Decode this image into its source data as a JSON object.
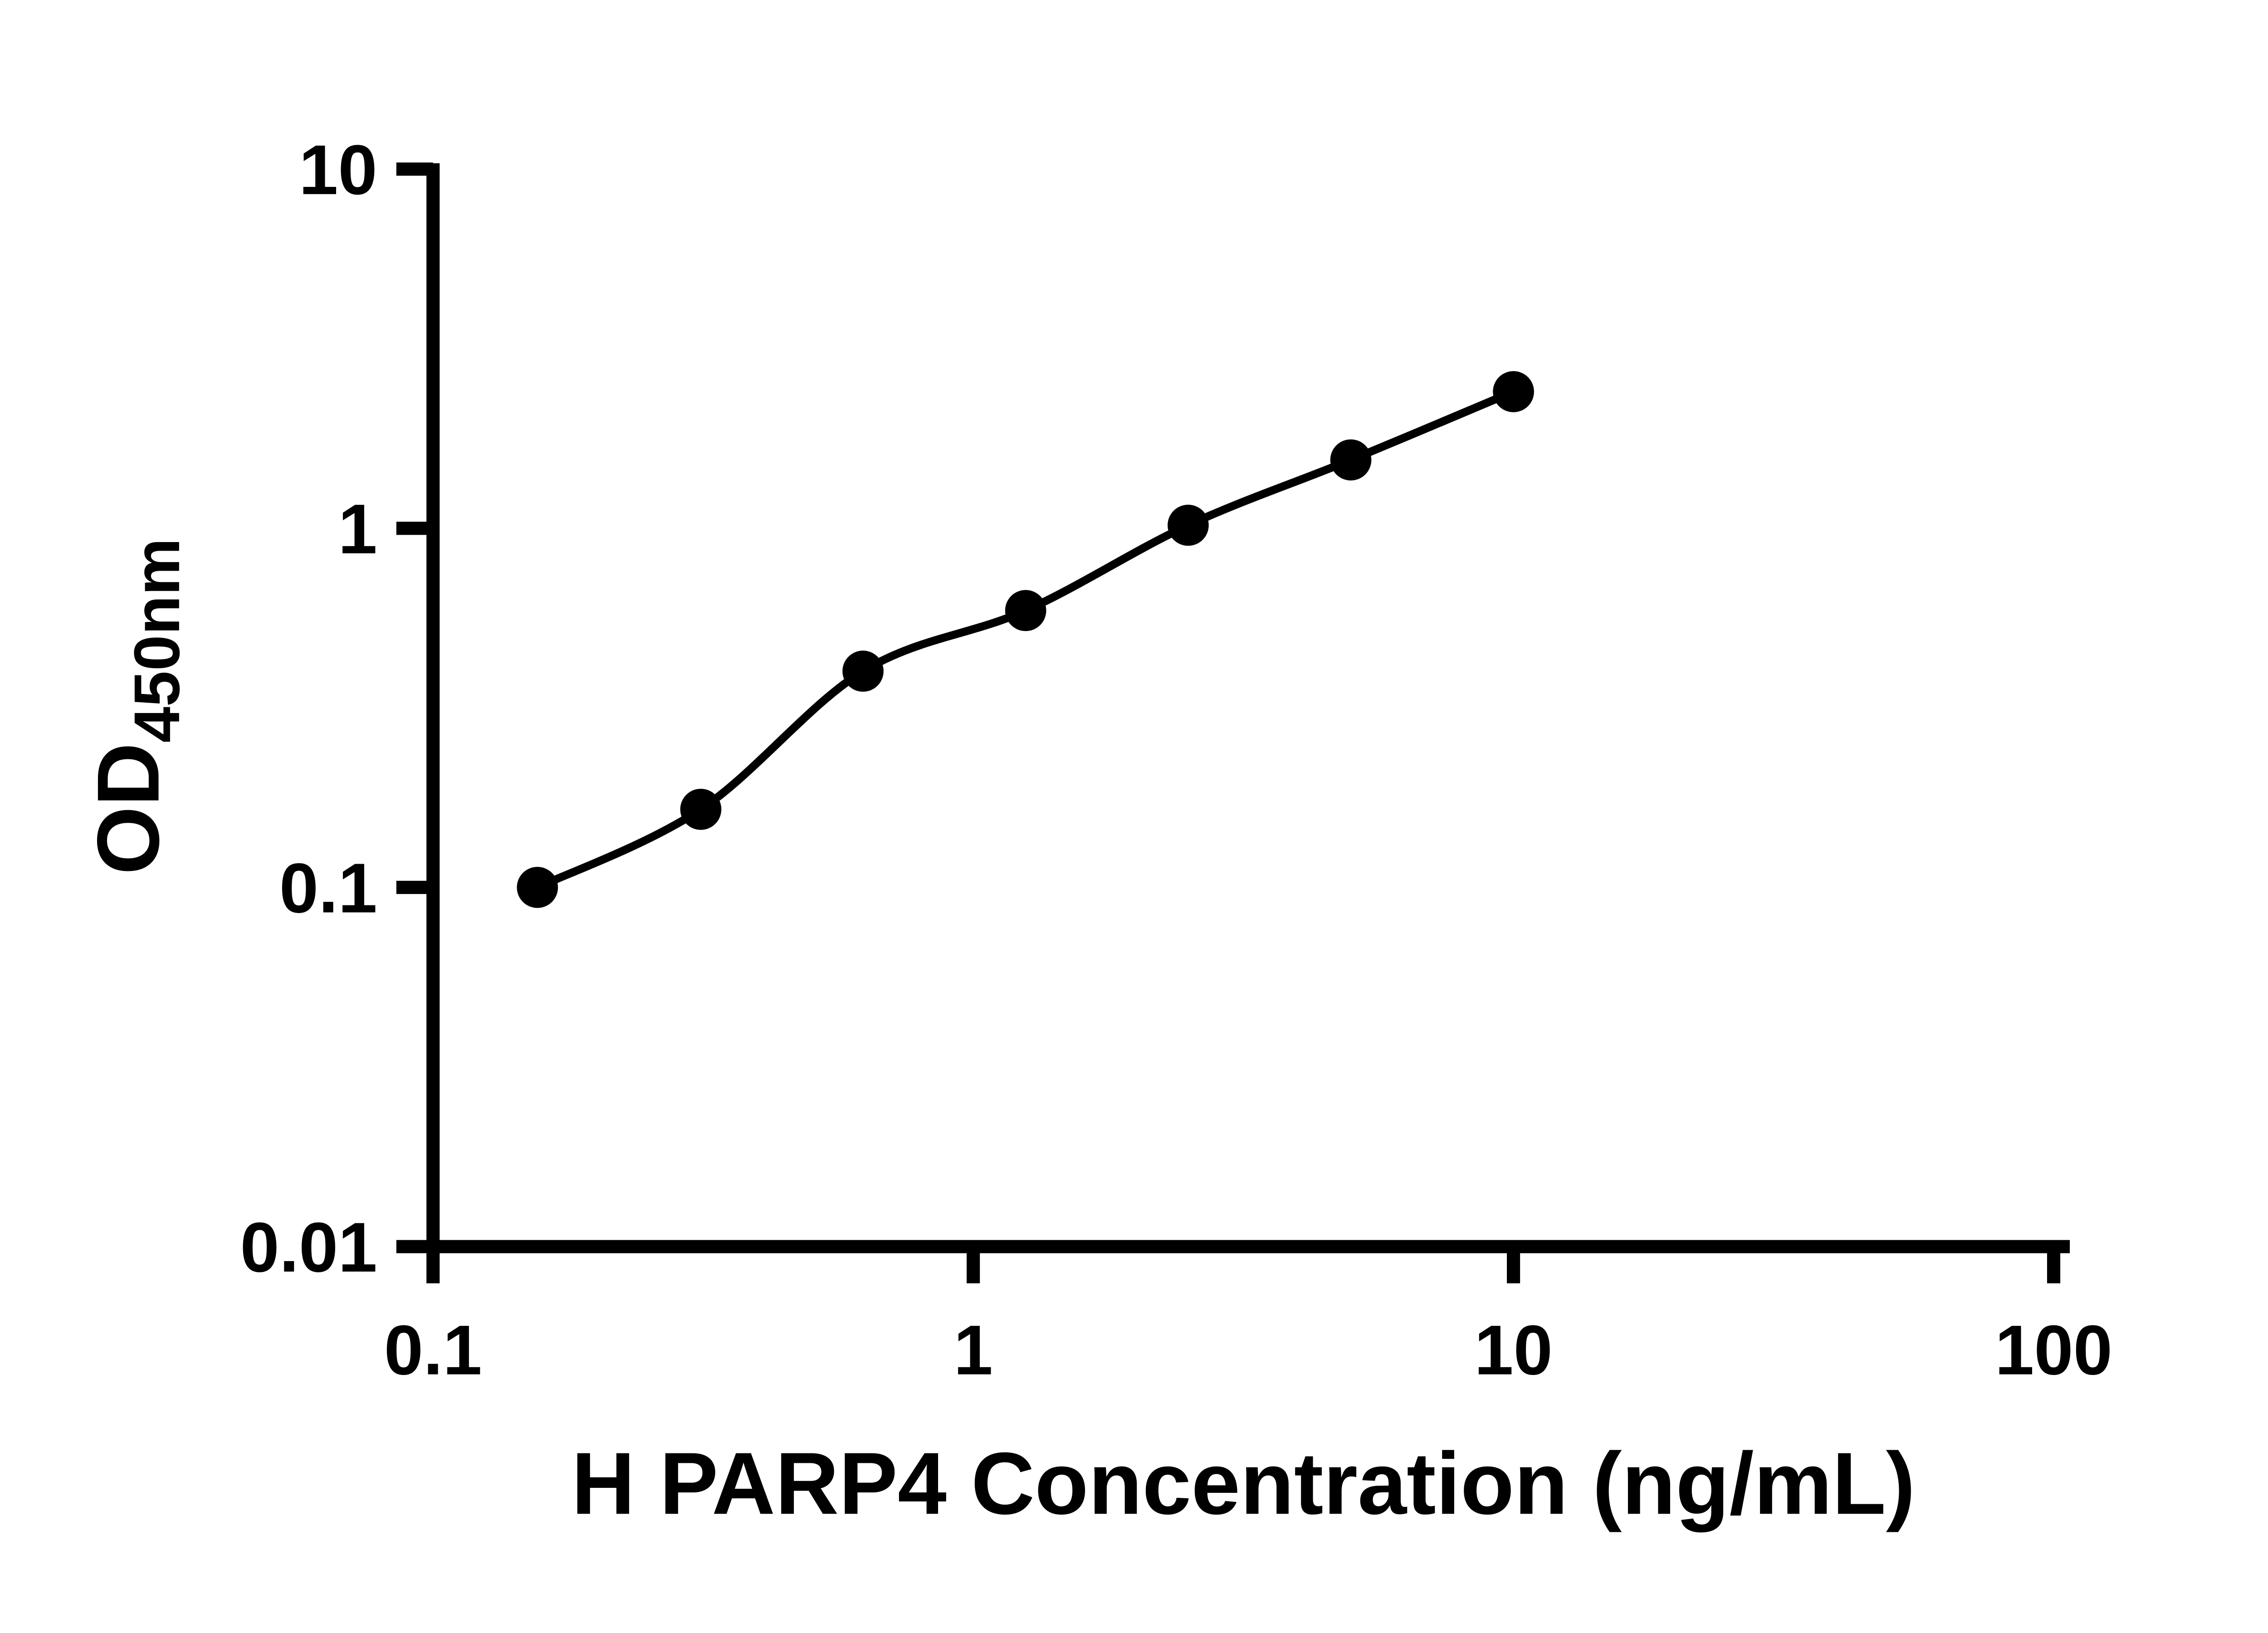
{
  "chart": {
    "background_color": "#ffffff",
    "axis_color": "#000000",
    "marker_color": "#000000",
    "curve_color": "#000000"
  },
  "chart_data": {
    "type": "scatter",
    "subtype": "log-log standard curve with smooth fitted line",
    "x": [
      0.156,
      0.313,
      0.625,
      1.25,
      2.5,
      5,
      10
    ],
    "y": [
      0.1,
      0.165,
      0.4,
      0.59,
      1.02,
      1.55,
      2.4
    ],
    "xlabel": "H PARP4 Concentration (ng/mL)",
    "ylabel": "OD",
    "ylabel_subscript": "450nm",
    "x_scale": "log",
    "y_scale": "log",
    "xlim": [
      0.1,
      100
    ],
    "ylim": [
      0.01,
      10
    ],
    "x_ticks": [
      0.1,
      1,
      10,
      100
    ],
    "x_tick_labels": [
      "0.1",
      "1",
      "10",
      "100"
    ],
    "y_ticks": [
      0.01,
      0.1,
      1,
      10
    ],
    "y_tick_labels": [
      "0.01",
      "0.1",
      "1",
      "10"
    ],
    "grid": false,
    "legend": false,
    "marker": "filled-circle",
    "line": "smooth curve through points"
  }
}
